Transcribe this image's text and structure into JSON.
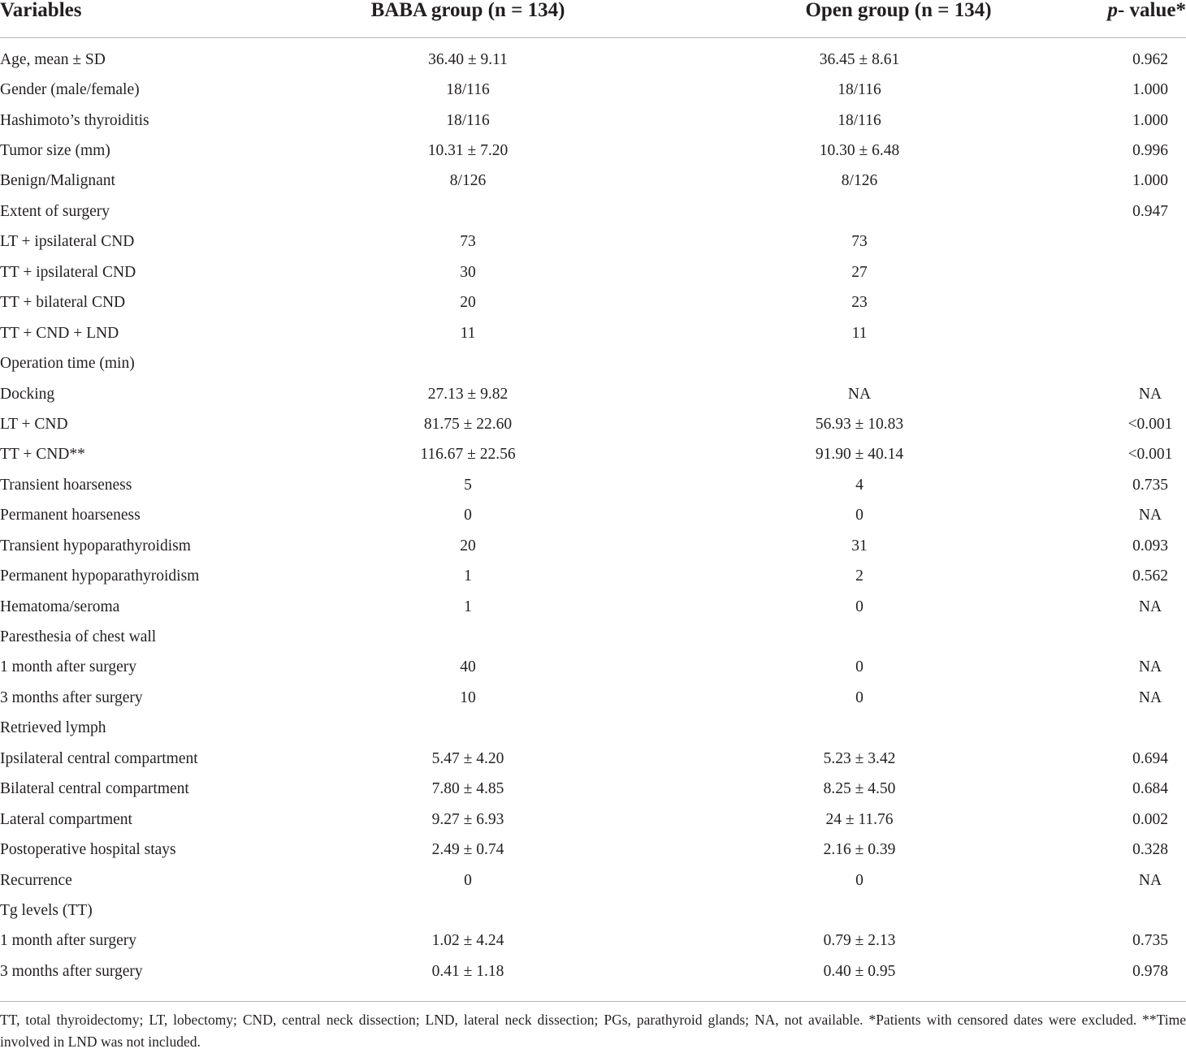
{
  "header": {
    "variables": "Variables",
    "baba": "BABA group (n = 134)",
    "open": "Open group (n = 134)",
    "p_italic": "p",
    "p_rest": "- value*"
  },
  "rows": [
    {
      "variable": "Age, mean ± SD",
      "baba": "36.40 ± 9.11",
      "open": "36.45 ± 8.61",
      "p": "0.962"
    },
    {
      "variable": "Gender (male/female)",
      "baba": "18/116",
      "open": "18/116",
      "p": "1.000"
    },
    {
      "variable": "Hashimoto’s thyroiditis",
      "baba": "18/116",
      "open": "18/116",
      "p": "1.000"
    },
    {
      "variable": "Tumor size (mm)",
      "baba": "10.31 ± 7.20",
      "open": "10.30 ± 6.48",
      "p": "0.996"
    },
    {
      "variable": "Benign/Malignant",
      "baba": "8/126",
      "open": "8/126",
      "p": "1.000"
    },
    {
      "variable": "Extent of surgery",
      "baba": "",
      "open": "",
      "p": "0.947"
    },
    {
      "variable": "LT + ipsilateral CND",
      "baba": "73",
      "open": "73",
      "p": ""
    },
    {
      "variable": "TT + ipsilateral CND",
      "baba": "30",
      "open": "27",
      "p": ""
    },
    {
      "variable": "TT + bilateral CND",
      "baba": "20",
      "open": "23",
      "p": ""
    },
    {
      "variable": "TT + CND + LND",
      "baba": "11",
      "open": "11",
      "p": ""
    },
    {
      "variable": "Operation time (min)",
      "baba": "",
      "open": "",
      "p": ""
    },
    {
      "variable": "Docking",
      "baba": "27.13 ± 9.82",
      "open": "NA",
      "p": "NA"
    },
    {
      "variable": "LT + CND",
      "baba": "81.75 ± 22.60",
      "open": "56.93 ± 10.83",
      "p": "<0.001"
    },
    {
      "variable": "TT + CND**",
      "baba": "116.67 ± 22.56",
      "open": "91.90 ± 40.14",
      "p": "<0.001"
    },
    {
      "variable": "Transient hoarseness",
      "baba": "5",
      "open": "4",
      "p": "0.735"
    },
    {
      "variable": "Permanent hoarseness",
      "baba": "0",
      "open": "0",
      "p": "NA"
    },
    {
      "variable": "Transient hypoparathyroidism",
      "baba": "20",
      "open": "31",
      "p": "0.093"
    },
    {
      "variable": "Permanent hypoparathyroidism",
      "baba": "1",
      "open": "2",
      "p": "0.562"
    },
    {
      "variable": "Hematoma/seroma",
      "baba": "1",
      "open": "0",
      "p": "NA"
    },
    {
      "variable": "Paresthesia of chest wall",
      "baba": "",
      "open": "",
      "p": ""
    },
    {
      "variable": "1 month after surgery",
      "baba": "40",
      "open": "0",
      "p": "NA"
    },
    {
      "variable": "3 months after surgery",
      "baba": "10",
      "open": "0",
      "p": "NA"
    },
    {
      "variable": "Retrieved lymph",
      "baba": "",
      "open": "",
      "p": ""
    },
    {
      "variable": "Ipsilateral central compartment",
      "baba": "5.47 ± 4.20",
      "open": "5.23 ± 3.42",
      "p": "0.694"
    },
    {
      "variable": "Bilateral central compartment",
      "baba": "7.80 ± 4.85",
      "open": "8.25 ± 4.50",
      "p": "0.684"
    },
    {
      "variable": "Lateral compartment",
      "baba": "9.27 ± 6.93",
      "open": "24 ± 11.76",
      "p": "0.002"
    },
    {
      "variable": "Postoperative hospital stays",
      "baba": "2.49 ± 0.74",
      "open": "2.16 ± 0.39",
      "p": "0.328"
    },
    {
      "variable": "Recurrence",
      "baba": "0",
      "open": "0",
      "p": "NA"
    },
    {
      "variable": "Tg levels (TT)",
      "baba": "",
      "open": "",
      "p": ""
    },
    {
      "variable": "1 month after surgery",
      "baba": "1.02 ± 4.24",
      "open": "0.79 ± 2.13",
      "p": "0.735"
    },
    {
      "variable": "3 months after surgery",
      "baba": "0.41 ± 1.18",
      "open": "0.40 ± 0.95",
      "p": "0.978"
    }
  ],
  "footnote": "TT, total thyroidectomy; LT, lobectomy; CND, central neck dissection; LND, lateral neck dissection; PGs, parathyroid glands; NA, not available. *Patients with censored dates were excluded. **Time involved in LND was not included."
}
